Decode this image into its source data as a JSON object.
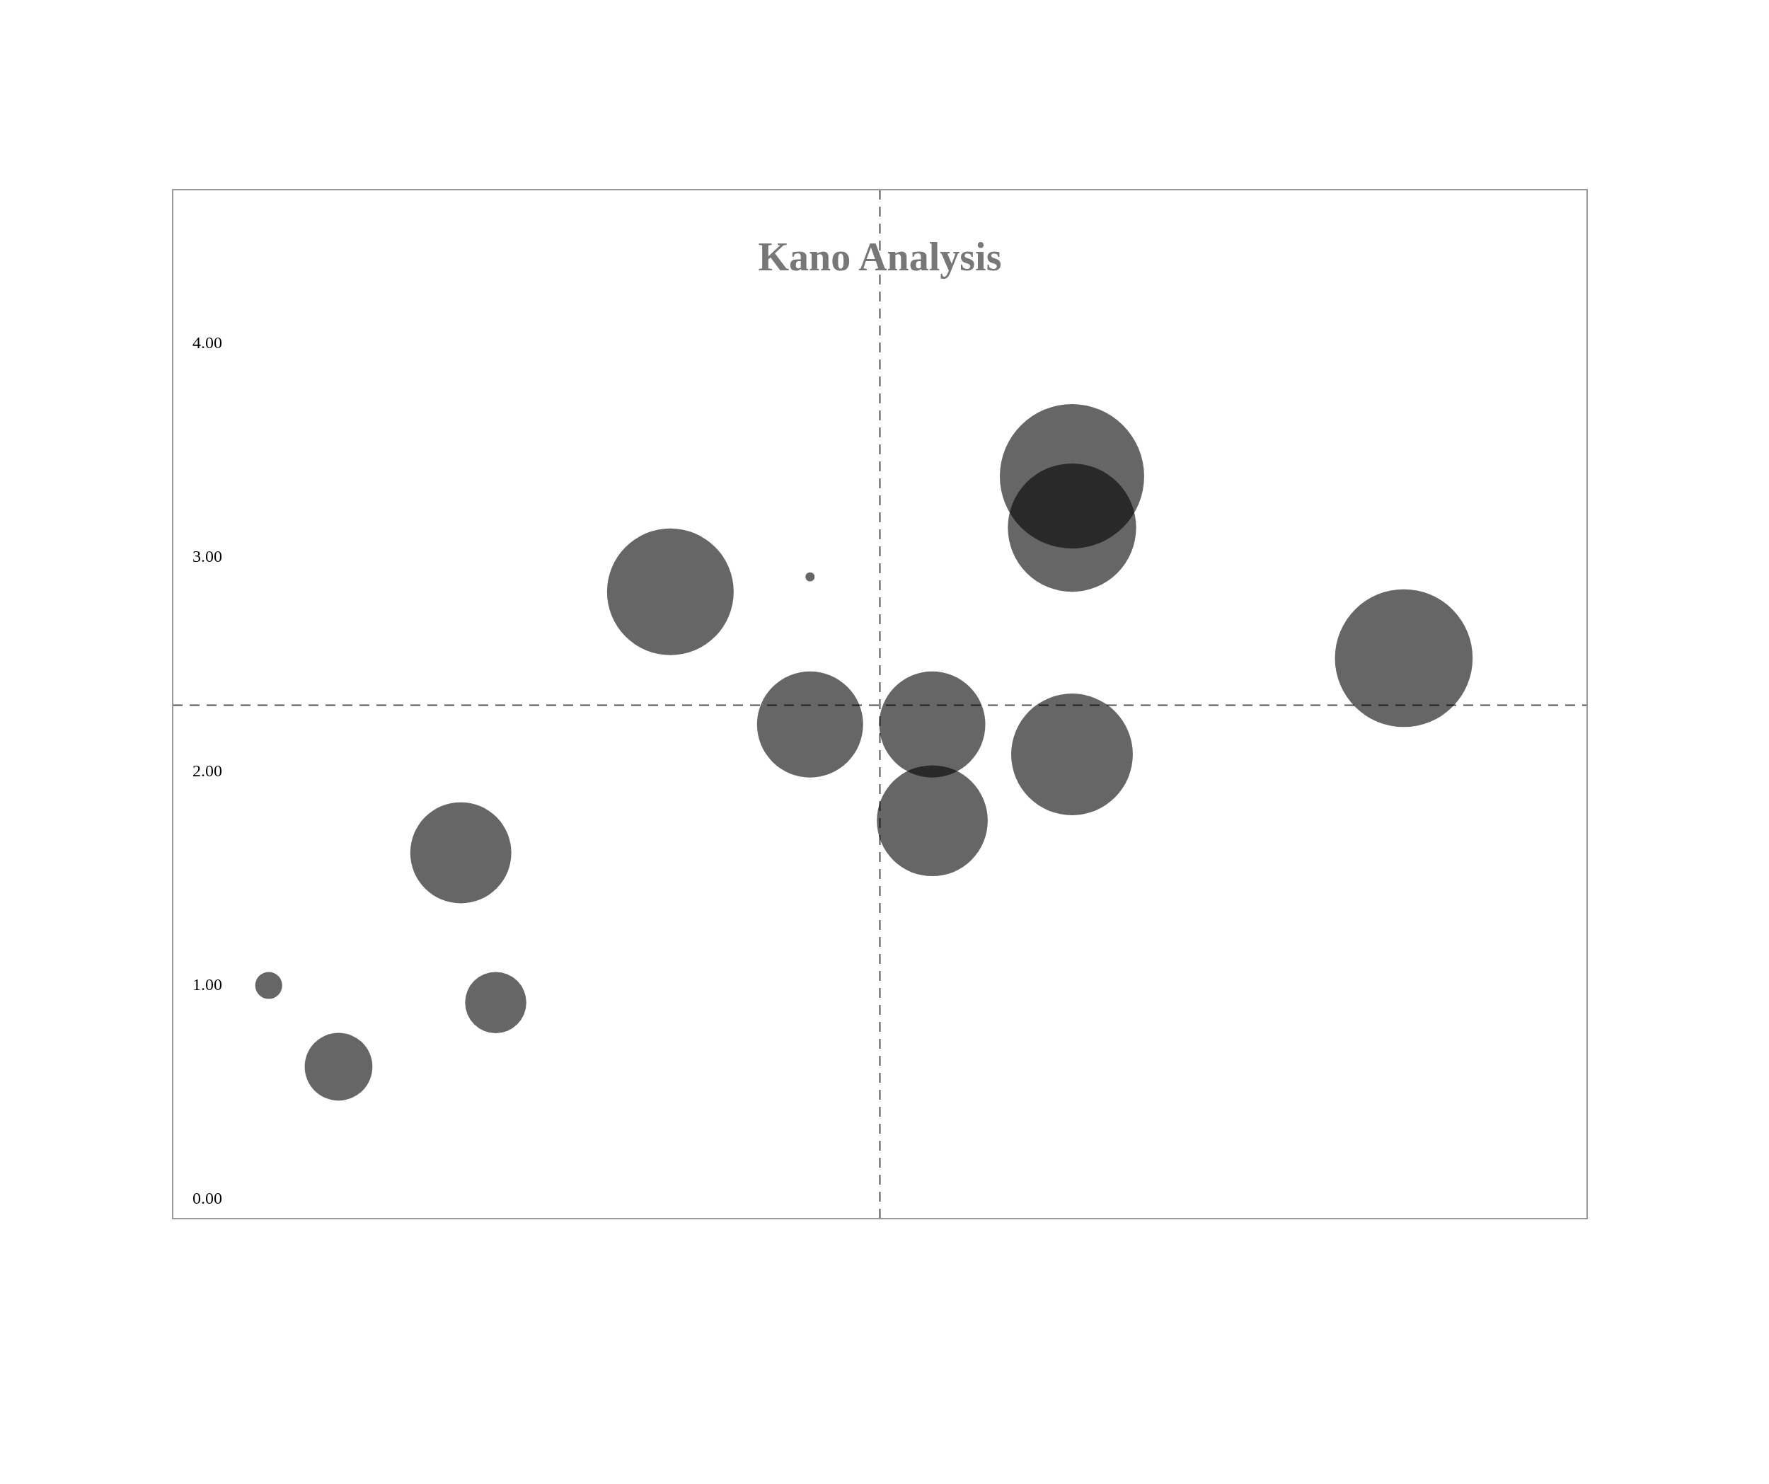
{
  "chart_data": {
    "type": "bubble",
    "title": "Kano Analysis",
    "categories": [
      null,
      null,
      null,
      null,
      null,
      null,
      null,
      null,
      null,
      null,
      null,
      null,
      null,
      null,
      null,
      null,
      null,
      null,
      null,
      null,
      null,
      null,
      null,
      null,
      null,
      null,
      null,
      null,
      null,
      null,
      null,
      null,
      null,
      null,
      null,
      null,
      null,
      null,
      null,
      null,
      null,
      null,
      null,
      null,
      null,
      null,
      null,
      null,
      null,
      null,
      null,
      null,
      null,
      null,
      null,
      null,
      null,
      null,
      null,
      null,
      null,
      null,
      null,
      null,
      null,
      null,
      null,
      null,
      null,
      null,
      null,
      null,
      null,
      null,
      null,
      null,
      null,
      null,
      null,
      null,
      null
    ],
    "series": [
      {
        "color": "#000000",
        "values": [
          null,
          null,
          null,
          null,
          null,
          1.0,
          null,
          null,
          null,
          0.62,
          null,
          null,
          null,
          null,
          null,
          null,
          1.62,
          null,
          0.92,
          null,
          null,
          null,
          null,
          null,
          null,
          null,
          null,
          null,
          2.84,
          null,
          null,
          null,
          null,
          null,
          null,
          null,
          2.22,
          null,
          null,
          null,
          null,
          null,
          null,
          2.22,
          null,
          null,
          null,
          null,
          null,
          null,
          null,
          3.38,
          null,
          null,
          null,
          null,
          null,
          null,
          null,
          null,
          null,
          null,
          null,
          null,
          null,
          null,
          null,
          null,
          null,
          null,
          2.53,
          null,
          null,
          null,
          null,
          null,
          null,
          null,
          null,
          null,
          null
        ],
        "sizes": [
          null,
          null,
          null,
          null,
          null,
          0.035,
          null,
          null,
          null,
          0.22,
          null,
          null,
          null,
          null,
          null,
          null,
          0.49,
          null,
          0.18,
          null,
          null,
          null,
          null,
          null,
          null,
          null,
          null,
          null,
          0.77,
          null,
          null,
          null,
          null,
          null,
          null,
          null,
          0.54,
          null,
          null,
          null,
          null,
          null,
          null,
          0.54,
          null,
          null,
          null,
          null,
          null,
          null,
          null,
          1,
          null,
          null,
          null,
          null,
          null,
          null,
          null,
          null,
          null,
          null,
          null,
          null,
          null,
          null,
          null,
          null,
          null,
          null,
          0.91,
          null,
          null,
          null,
          null,
          null,
          null,
          null,
          null,
          null,
          null
        ]
      },
      {
        "color": "#000000",
        "values": [
          null,
          null,
          null,
          null,
          null,
          null,
          null,
          null,
          null,
          null,
          null,
          null,
          null,
          null,
          null,
          null,
          null,
          null,
          null,
          null,
          null,
          null,
          null,
          null,
          null,
          null,
          null,
          null,
          null,
          null,
          null,
          null,
          null,
          null,
          null,
          null,
          2.91,
          null,
          null,
          null,
          null,
          null,
          null,
          1.77,
          null,
          null,
          null,
          null,
          null,
          null,
          null,
          3.14,
          null,
          null,
          null,
          null,
          null,
          null,
          null,
          null,
          null,
          null,
          null,
          null,
          null,
          null,
          null,
          null,
          null,
          null,
          null,
          null,
          null,
          null,
          null,
          null,
          null,
          null,
          null,
          null,
          null
        ],
        "sizes": [
          null,
          null,
          null,
          null,
          null,
          null,
          null,
          null,
          null,
          null,
          null,
          null,
          null,
          null,
          null,
          null,
          null,
          null,
          null,
          null,
          null,
          null,
          null,
          null,
          null,
          null,
          null,
          null,
          null,
          null,
          null,
          null,
          null,
          null,
          null,
          null,
          0.004,
          null,
          null,
          null,
          null,
          null,
          null,
          0.59,
          null,
          null,
          null,
          null,
          null,
          null,
          null,
          0.79,
          null,
          null,
          null,
          null,
          null,
          null,
          null,
          null,
          null,
          null,
          null,
          null,
          null,
          null,
          null,
          null,
          null,
          null,
          null,
          null,
          null,
          null,
          null,
          null,
          null,
          null,
          null,
          null,
          null
        ]
      },
      {
        "color": "#000000",
        "values": [
          null,
          null,
          null,
          null,
          null,
          null,
          null,
          null,
          null,
          null,
          null,
          null,
          null,
          null,
          null,
          null,
          null,
          null,
          null,
          null,
          null,
          null,
          null,
          null,
          null,
          null,
          null,
          null,
          null,
          null,
          null,
          null,
          null,
          null,
          null,
          null,
          null,
          null,
          null,
          null,
          null,
          null,
          null,
          null,
          null,
          null,
          null,
          null,
          null,
          null,
          null,
          2.08,
          null,
          null,
          null,
          null,
          null,
          null,
          null,
          null,
          null,
          null,
          null,
          null,
          null,
          null,
          null,
          null,
          null,
          null,
          null,
          null,
          null,
          null,
          null,
          null,
          null,
          null,
          null,
          null,
          null
        ],
        "sizes": [
          null,
          null,
          null,
          null,
          null,
          null,
          null,
          null,
          null,
          null,
          null,
          null,
          null,
          null,
          null,
          null,
          null,
          null,
          null,
          null,
          null,
          null,
          null,
          null,
          null,
          null,
          null,
          null,
          null,
          null,
          null,
          null,
          null,
          null,
          null,
          null,
          null,
          null,
          null,
          null,
          null,
          null,
          null,
          null,
          null,
          null,
          null,
          null,
          null,
          null,
          null,
          0.71,
          null,
          null,
          null,
          null,
          null,
          null,
          null,
          null,
          null,
          null,
          null,
          null,
          null,
          null,
          null,
          null,
          null,
          null,
          null,
          null,
          null,
          null,
          null,
          null,
          null,
          null,
          null,
          null,
          null
        ]
      }
    ],
    "ylim": [
      -0.09,
      4.72
    ],
    "yticks": [
      {
        "value": 0,
        "label": "0.00"
      },
      {
        "value": 1,
        "label": "1.00"
      },
      {
        "value": 2,
        "label": "2.00"
      },
      {
        "value": 3,
        "label": "3.00"
      },
      {
        "value": 4,
        "label": "4.00"
      }
    ],
    "tick_labels": "y",
    "legend": false,
    "ref_lines": [
      {
        "axis": "x",
        "line_style": "dashed"
      },
      {
        "axis": "y",
        "value": 2.31,
        "line_style": "dashed"
      }
    ]
  }
}
